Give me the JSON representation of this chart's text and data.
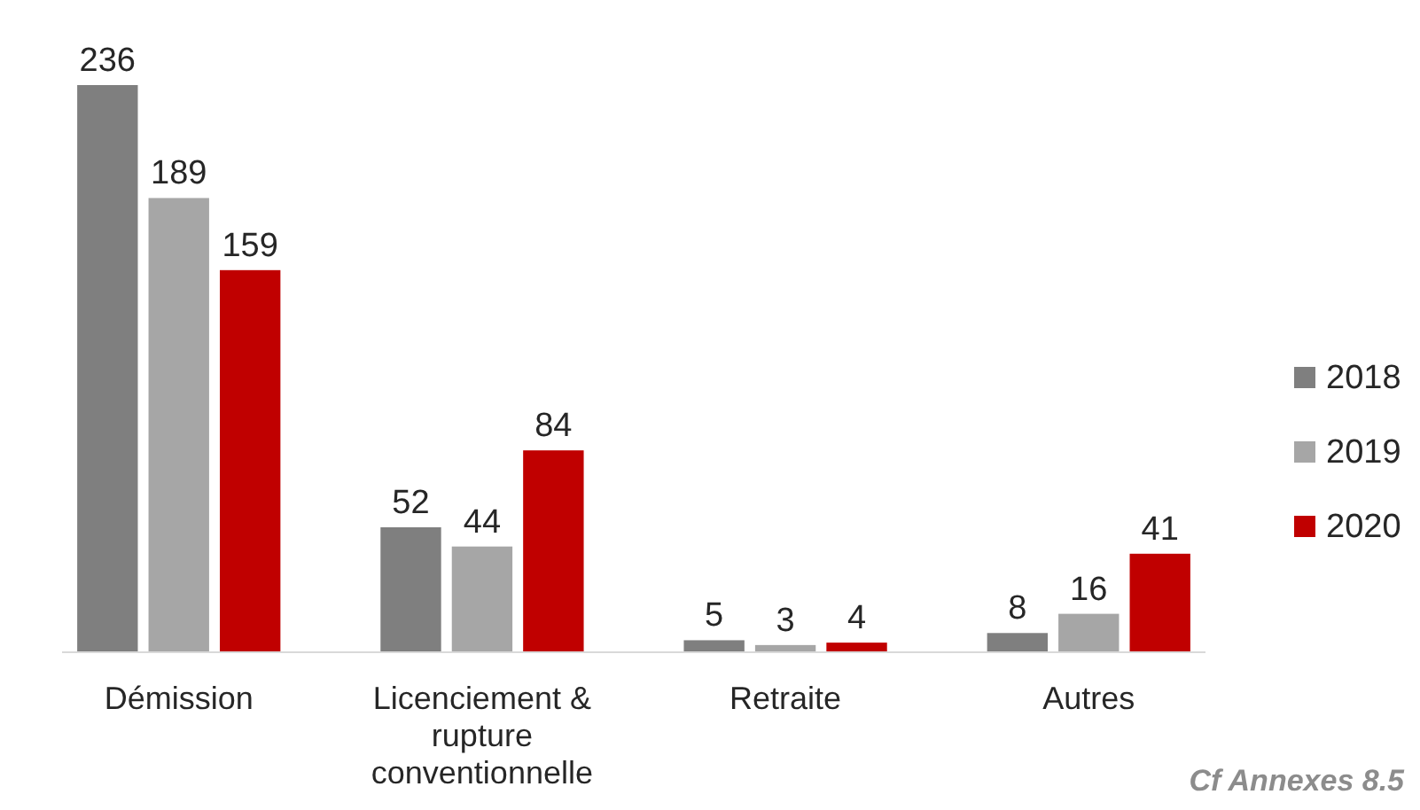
{
  "chart_data": {
    "type": "bar",
    "categories": [
      "Démission",
      "Licenciement & rupture conventionnelle",
      "Retraite",
      "Autres"
    ],
    "series": [
      {
        "name": "2018",
        "color": "#7f7f7f",
        "values": [
          236,
          52,
          5,
          8
        ]
      },
      {
        "name": "2019",
        "color": "#a6a6a6",
        "values": [
          189,
          44,
          3,
          16
        ]
      },
      {
        "name": "2020",
        "color": "#c00000",
        "values": [
          159,
          84,
          4,
          41
        ]
      }
    ],
    "data_labels": true,
    "legend": "right",
    "annotations": [
      "Cf Annexes 8.5"
    ]
  }
}
